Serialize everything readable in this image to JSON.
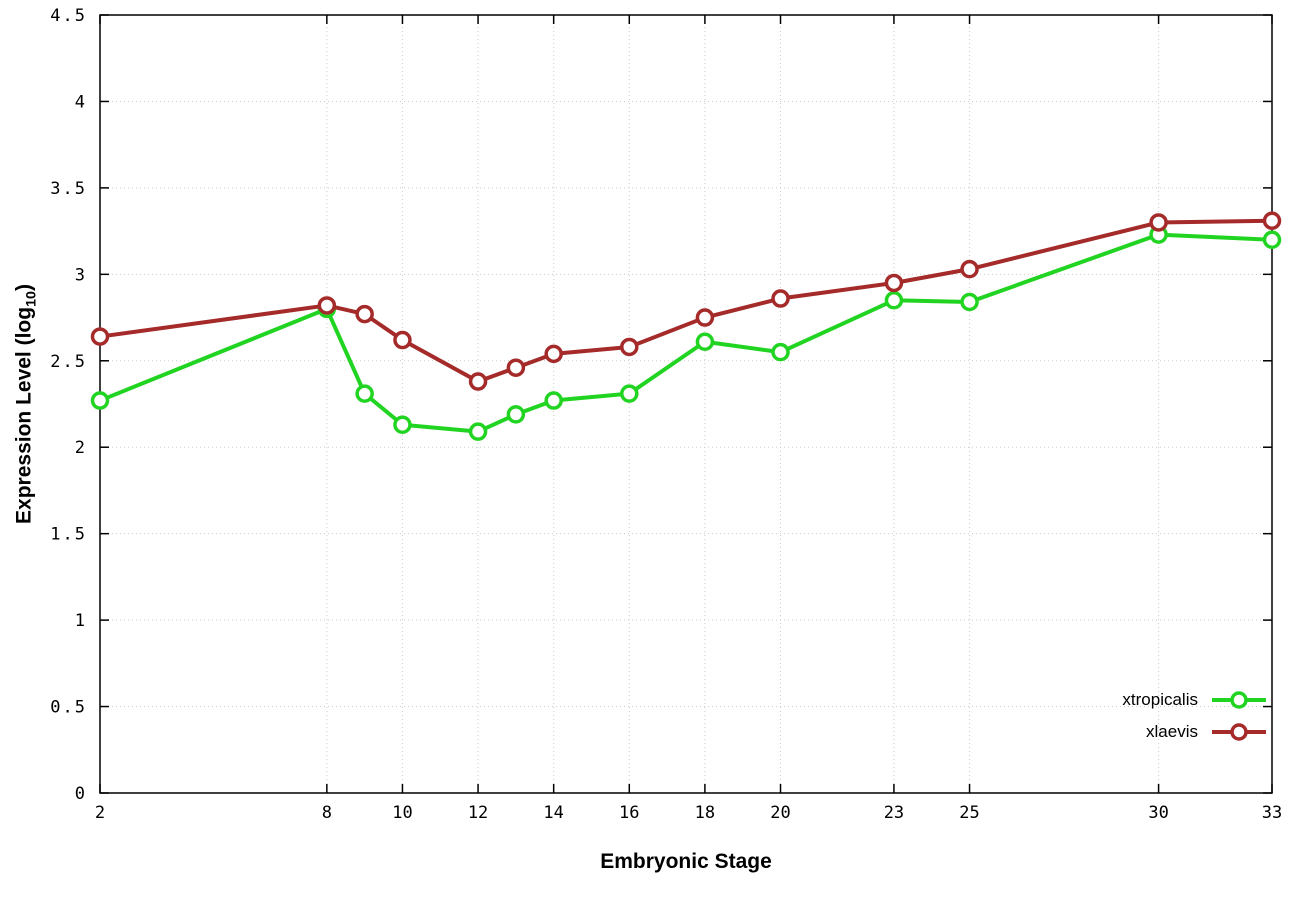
{
  "chart_data": {
    "type": "line",
    "title": "",
    "xlabel": "Embryonic Stage",
    "ylabel": "Expression Level (log10)",
    "ylabel_parts": {
      "prefix": "Expression Level (log",
      "sub": "10",
      "suffix": ")"
    },
    "x": [
      2,
      8,
      9,
      10,
      12,
      13,
      14,
      16,
      18,
      20,
      23,
      25,
      30,
      33
    ],
    "series": [
      {
        "name": "xtropicalis",
        "color": "#22d422",
        "values": [
          2.27,
          2.8,
          2.31,
          2.13,
          2.09,
          2.19,
          2.27,
          2.31,
          2.61,
          2.55,
          2.85,
          2.84,
          3.23,
          3.2
        ]
      },
      {
        "name": "xlaevis",
        "color": "#a52a2a",
        "values": [
          2.64,
          2.82,
          2.77,
          2.62,
          2.38,
          2.46,
          2.54,
          2.58,
          2.75,
          2.86,
          2.95,
          3.03,
          3.3,
          3.31
        ]
      }
    ],
    "xlim": [
      2,
      33
    ],
    "ylim": [
      0,
      4.5
    ],
    "x_ticks": [
      2,
      8,
      10,
      12,
      14,
      16,
      18,
      20,
      23,
      25,
      30,
      33
    ],
    "x_tick_labels": [
      "2",
      "8",
      "10",
      "12",
      "14",
      "16",
      "18",
      "20",
      "23",
      "25",
      "30",
      "33"
    ],
    "y_ticks": [
      0,
      0.5,
      1,
      1.5,
      2,
      2.5,
      3,
      3.5,
      4,
      4.5
    ],
    "y_tick_labels": [
      "0",
      "0.5",
      "1",
      "1.5",
      "2",
      "2.5",
      "3",
      "3.5",
      "4",
      "4.5"
    ],
    "grid": true,
    "legend_position": "bottom-right",
    "marker": "open-circle",
    "background": "#ffffff",
    "grid_color": "#cccccc",
    "axis_color": "#000000"
  }
}
